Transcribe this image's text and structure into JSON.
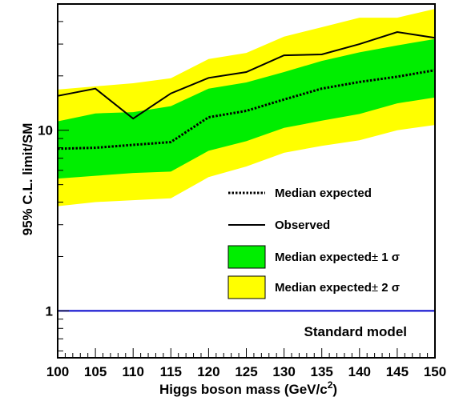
{
  "chart_data": {
    "type": "line",
    "xlabel": "Higgs boson mass (GeV/c",
    "xlabel_sup": "2",
    "xlabel_end": ")",
    "ylabel": "95% C.L. limit/SM",
    "xlim": [
      100,
      150
    ],
    "ylim": [
      0.55,
      50
    ],
    "yscale": "log",
    "x": [
      100,
      105,
      110,
      115,
      120,
      125,
      130,
      135,
      140,
      145,
      150
    ],
    "x_tick_labels": [
      "100",
      "105",
      "110",
      "115",
      "120",
      "125",
      "130",
      "135",
      "140",
      "145",
      "150"
    ],
    "y_tick_labels": [
      {
        "value": 1,
        "label": "1"
      },
      {
        "value": 10,
        "label": "10"
      }
    ],
    "series": [
      {
        "name": "Observed",
        "style": "solid",
        "values": [
          15.5,
          17.0,
          11.6,
          16.0,
          19.5,
          21.0,
          26.0,
          26.3,
          30.0,
          35.0,
          32.5
        ]
      },
      {
        "name": "Median expected",
        "style": "dotted",
        "values": [
          7.9,
          8.0,
          8.3,
          8.6,
          11.8,
          12.8,
          14.8,
          17.0,
          18.5,
          19.8,
          21.5
        ]
      }
    ],
    "bands": [
      {
        "name": "Median expected ± 2 σ",
        "color": "#ffff00",
        "upper": [
          16.8,
          17.5,
          18.2,
          19.4,
          24.8,
          26.8,
          33.0,
          37.2,
          42.0,
          42.0,
          47.0
        ],
        "lower": [
          3.8,
          4.0,
          4.1,
          4.2,
          5.5,
          6.3,
          7.5,
          8.2,
          8.8,
          10.0,
          10.7
        ]
      },
      {
        "name": "Median expected ± 1 σ",
        "color": "#00ee00",
        "upper": [
          11.2,
          12.4,
          12.6,
          13.6,
          17.0,
          18.4,
          21.0,
          24.2,
          27.0,
          29.5,
          32.0
        ],
        "lower": [
          5.4,
          5.6,
          5.8,
          5.9,
          7.7,
          8.7,
          10.3,
          11.3,
          12.3,
          14.1,
          15.2
        ]
      }
    ],
    "reference_line": {
      "name": "Standard model",
      "value": 1,
      "color": "#0000cc"
    },
    "legend": {
      "placement": "lower-right",
      "entries": [
        {
          "label": "Median expected",
          "symbol": "dotted-line"
        },
        {
          "label": "Observed",
          "symbol": "solid-line"
        },
        {
          "label": "Median expected",
          "suffix": " 1 σ",
          "symbol": "green-box"
        },
        {
          "label": "Median expected",
          "suffix": " 2 σ",
          "symbol": "yellow-box"
        }
      ],
      "pm_symbol": "±"
    }
  }
}
